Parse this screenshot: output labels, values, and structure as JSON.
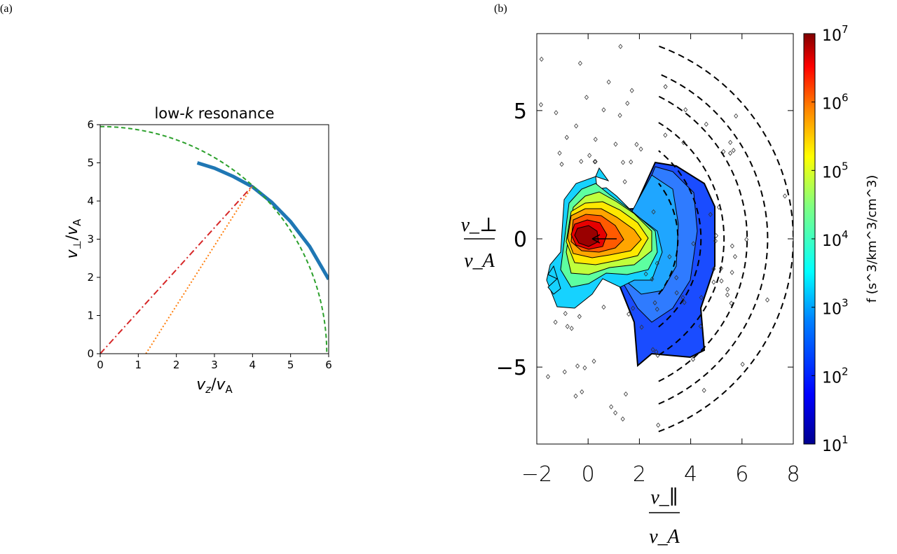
{
  "panels": {
    "a_label": "(a)",
    "b_label": "(b)"
  },
  "colors": {
    "green_circle": "#2ca02c",
    "blue_curve": "#1f77b4",
    "red_line": "#d62728",
    "orange_line": "#ff7f0e"
  },
  "chart_data": [
    {
      "type": "line",
      "title_pre": "low-",
      "title_italic": "k",
      "title_post": " resonance",
      "xlabel": "v_z/v_A",
      "ylabel": "v_⊥/v_A",
      "xlim": [
        0,
        6
      ],
      "ylim": [
        0,
        6
      ],
      "xticks": [
        "0",
        "1",
        "2",
        "3",
        "4",
        "5",
        "6"
      ],
      "yticks": [
        "0",
        "1",
        "2",
        "3",
        "4",
        "5",
        "6"
      ],
      "grid": false,
      "series": [
        {
          "style": "thick-solid",
          "color": "#1f77b4",
          "x": [
            2.55,
            3.0,
            3.5,
            4.0,
            4.5,
            5.0,
            5.5,
            6.0
          ],
          "y": [
            5.0,
            4.86,
            4.64,
            4.37,
            3.97,
            3.46,
            2.81,
            1.95
          ]
        },
        {
          "style": "dashed",
          "color": "#2ca02c",
          "shape": "circle-arc",
          "radius": 5.95
        },
        {
          "style": "dashdot",
          "color": "#d62728",
          "x": [
            0,
            4.0
          ],
          "y": [
            0,
            4.4
          ]
        },
        {
          "style": "dotted",
          "color": "#ff7f0e",
          "x": [
            1.2,
            4.0
          ],
          "y": [
            0,
            4.4
          ]
        }
      ]
    },
    {
      "type": "contour",
      "xlabel_num": "v_∥",
      "xlabel_den": "v_A",
      "ylabel_num": "v_⊥",
      "ylabel_den": "v_A",
      "xlim": [
        -2,
        8
      ],
      "ylim": [
        -8,
        8
      ],
      "xticks": [
        "−2",
        "0",
        "2",
        "4",
        "6",
        "8"
      ],
      "yticks": [
        "−5",
        "0",
        "5"
      ],
      "colorbar": {
        "label": "f (s^3/km^3/cm^3)",
        "scale": "log",
        "range": [
          10,
          10000000
        ],
        "tick_base": "10",
        "tick_exps": [
          "1",
          "2",
          "3",
          "4",
          "5",
          "6",
          "7"
        ],
        "colormap": "jet"
      },
      "dashed_arcs_radius": [
        3.5,
        4.4,
        5.3,
        6.2,
        7.0,
        8.0
      ],
      "arrow": {
        "from": [
          1.2,
          0
        ],
        "to": [
          0.05,
          0
        ]
      }
    }
  ]
}
